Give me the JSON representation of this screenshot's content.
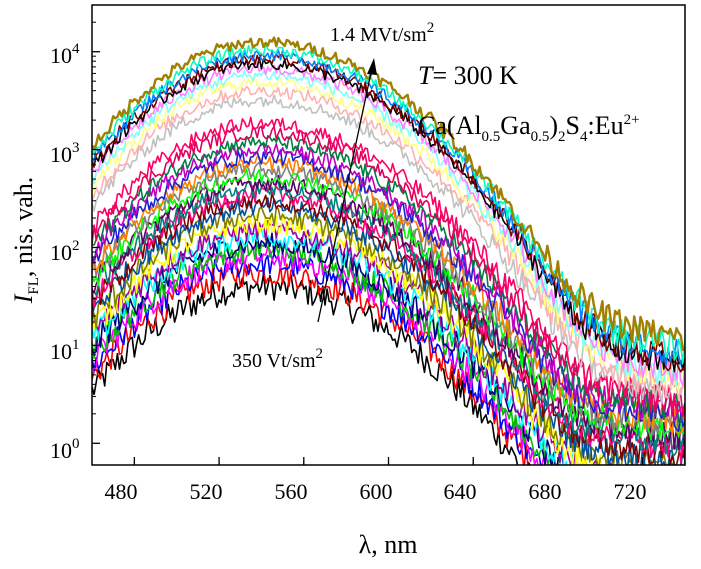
{
  "chart_data": {
    "type": "line",
    "y_scale": "log",
    "xlim": [
      460,
      740
    ],
    "ylim": [
      0.6,
      30000
    ],
    "x_ticks": [
      480,
      520,
      560,
      600,
      640,
      680,
      720
    ],
    "y_ticks": [
      1,
      10,
      100,
      1000,
      10000
    ],
    "y_tick_labels": [
      {
        "base": "10",
        "exp": "0"
      },
      {
        "base": "10",
        "exp": "1"
      },
      {
        "base": "10",
        "exp": "2"
      },
      {
        "base": "10",
        "exp": "3"
      },
      {
        "base": "10",
        "exp": "4"
      }
    ],
    "xlabel": {
      "symbol": "λ",
      "rest": ", nm"
    },
    "ylabel": {
      "symbol": "I",
      "sub": "FL",
      "rest": ", nis. vah."
    },
    "annotations": {
      "high": {
        "text": "1.4 MVt/sm",
        "sup": "2"
      },
      "low": {
        "text": "350 Vt/sm",
        "sup": "2"
      },
      "temp": {
        "symbol": "T",
        "rest": "= 300 K"
      },
      "formula": {
        "p1": "Ca(Al",
        "s1": "0.5",
        "p2": "Ga",
        "s2": "0.5",
        "p3": ")",
        "s3": "2",
        "p4": "S",
        "s4": "4",
        "p5": ":Eu",
        "sup": "2+"
      }
    },
    "peak_wavelength": 540,
    "series": [
      {
        "color": "#000000",
        "peak": 40,
        "tail": 0.05
      },
      {
        "color": "#ff0000",
        "peak": 55,
        "tail": 0.08
      },
      {
        "color": "#0000ff",
        "peak": 68,
        "tail": 0.12
      },
      {
        "color": "#ff00ff",
        "peak": 80,
        "tail": 0.16
      },
      {
        "color": "#00c000",
        "peak": 95,
        "tail": 0.2
      },
      {
        "color": "#000080",
        "peak": 110,
        "tail": 0.25
      },
      {
        "color": "#00ffff",
        "peak": 130,
        "tail": 0.32
      },
      {
        "color": "#a000a0",
        "peak": 150,
        "tail": 0.4
      },
      {
        "color": "#ffff00",
        "peak": 175,
        "tail": 0.5
      },
      {
        "color": "#808000",
        "peak": 210,
        "tail": 0.6
      },
      {
        "color": "#0050a0",
        "peak": 260,
        "tail": 0.72
      },
      {
        "color": "#800000",
        "peak": 300,
        "tail": 0.85
      },
      {
        "color": "#ff0080",
        "peak": 350,
        "tail": 1.0
      },
      {
        "color": "#008080",
        "peak": 400,
        "tail": 1.15
      },
      {
        "color": "#600060",
        "peak": 460,
        "tail": 1.3
      },
      {
        "color": "#00ff00",
        "peak": 540,
        "tail": 1.5
      },
      {
        "color": "#808080",
        "peak": 620,
        "tail": 1.7
      },
      {
        "color": "#ff8000",
        "peak": 720,
        "tail": 1.9
      },
      {
        "color": "#2020d0",
        "peak": 850,
        "tail": 2.1
      },
      {
        "color": "#c000c0",
        "peak": 1000,
        "tail": 2.3
      },
      {
        "color": "#008040",
        "peak": 1200,
        "tail": 2.5
      },
      {
        "color": "#e00060",
        "peak": 1500,
        "tail": 2.8
      },
      {
        "color": "#ff0066",
        "peak": 1850,
        "tail": 3.1
      },
      {
        "color": "#c0c0c0",
        "peak": 3200,
        "tail": 3.6
      },
      {
        "color": "#ffb0b0",
        "peak": 4000,
        "tail": 4.2
      },
      {
        "color": "#ffff80",
        "peak": 4900,
        "tail": 4.8
      },
      {
        "color": "#80ffff",
        "peak": 5800,
        "tail": 5.4
      },
      {
        "color": "#ff80ff",
        "peak": 6700,
        "tail": 6.0
      },
      {
        "color": "#000000",
        "peak": 7600,
        "tail": 7.0
      },
      {
        "color": "#800000",
        "peak": 8400,
        "tail": 8.0
      },
      {
        "color": "#0080ff",
        "peak": 9300,
        "tail": 9.0
      },
      {
        "color": "#00ffc0",
        "peak": 10500,
        "tail": 10.5
      },
      {
        "color": "#a08000",
        "peak": 12500,
        "tail": 13.0
      }
    ]
  }
}
